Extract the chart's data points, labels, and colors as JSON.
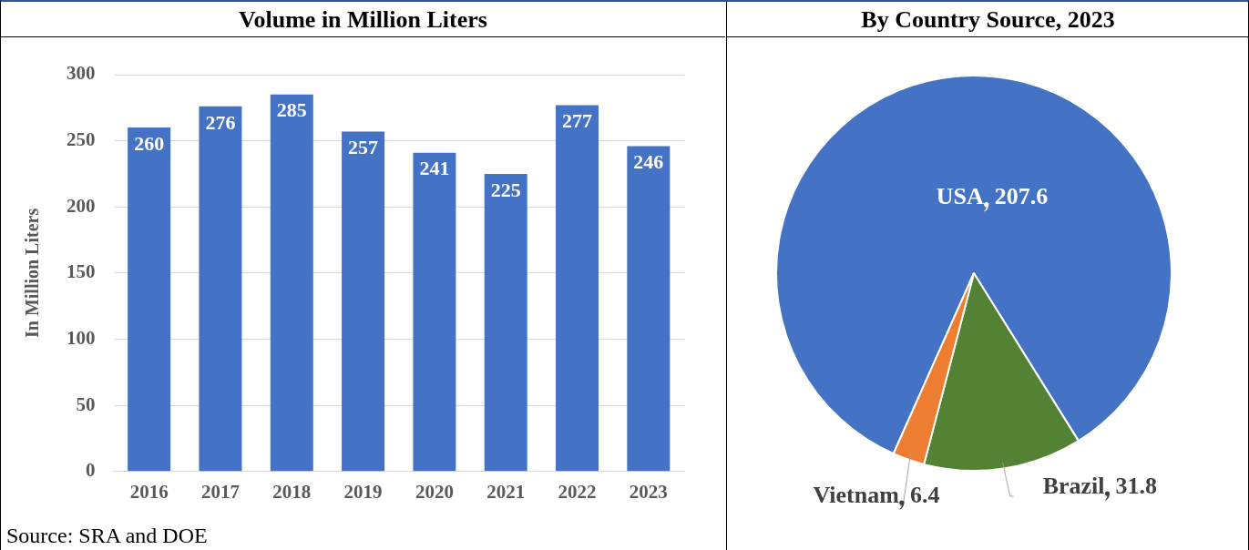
{
  "chart_data": [
    {
      "type": "bar",
      "title": "Volume in Million Liters",
      "ylabel": "In Million Liters",
      "categories": [
        "2016",
        "2017",
        "2018",
        "2019",
        "2020",
        "2021",
        "2022",
        "2023"
      ],
      "values": [
        260,
        276,
        285,
        257,
        241,
        225,
        277,
        246
      ],
      "color": "#4472c4",
      "ylim": [
        0,
        300
      ],
      "yticks": [
        0,
        50,
        100,
        150,
        200,
        250,
        300
      ],
      "grid": "y",
      "legend": false,
      "data_labels": true,
      "annotations": [
        "Source: SRA and DOE"
      ]
    },
    {
      "type": "pie",
      "title": "By Country Source, 2023",
      "categories": [
        "USA",
        "Brazil",
        "Vietnam"
      ],
      "values": [
        207.6,
        31.8,
        6.4
      ],
      "colors": [
        "#4472c4",
        "#548235",
        "#ed7d31"
      ],
      "legend": false,
      "data_labels": true
    }
  ]
}
